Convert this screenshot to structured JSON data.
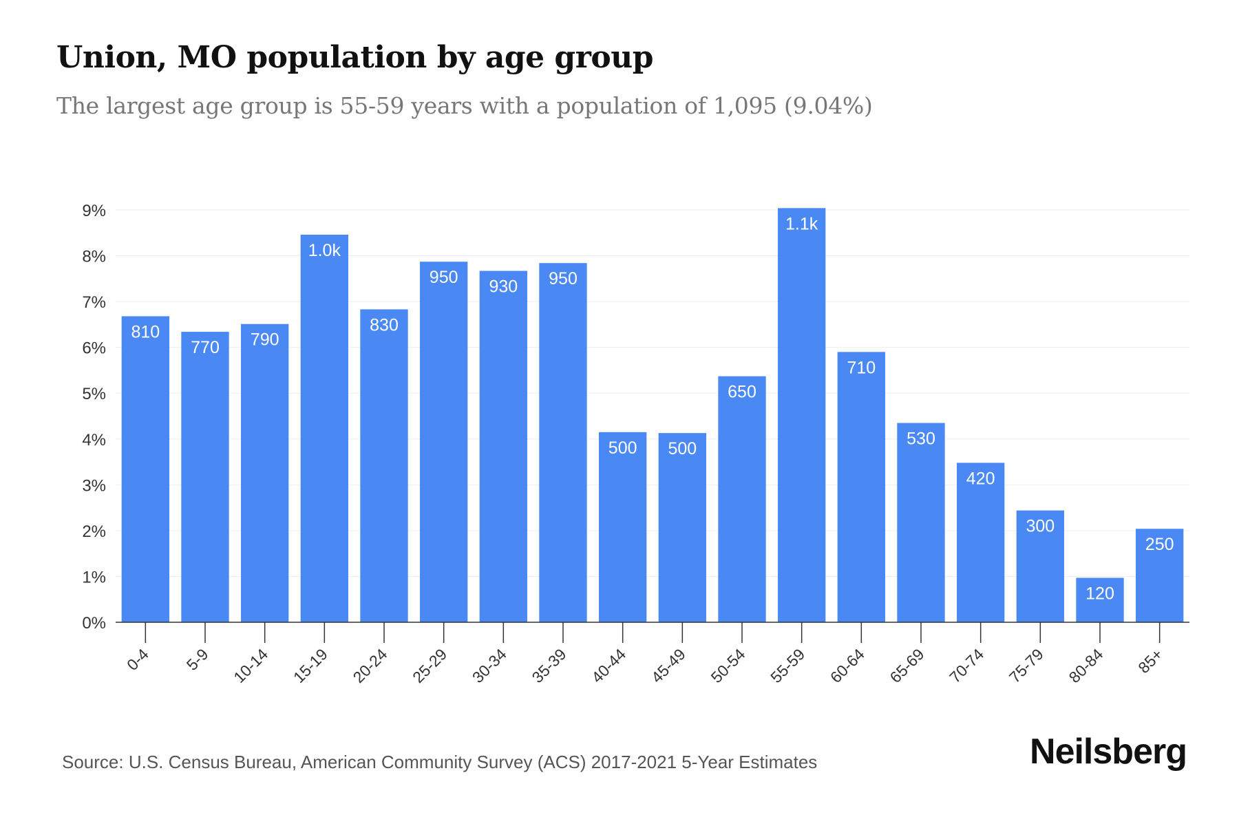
{
  "header": {
    "title": "Union, MO population by age group",
    "subtitle": "The largest age group is 55-59 years with a population of 1,095 (9.04%)"
  },
  "footer": {
    "source": "Source: U.S. Census Bureau, American Community Survey (ACS) 2017-2021 5-Year Estimates",
    "brand": "Neilsberg"
  },
  "colors": {
    "bar": "#4a89f3",
    "bar_label": "#ffffff",
    "grid": "#eeeeee",
    "axis": "#333333",
    "tick_text": "#333333"
  },
  "chart_data": {
    "type": "bar",
    "categories": [
      "0-4",
      "5-9",
      "10-14",
      "15-19",
      "20-24",
      "25-29",
      "30-34",
      "35-39",
      "40-44",
      "45-49",
      "50-54",
      "55-59",
      "60-64",
      "65-69",
      "70-74",
      "75-79",
      "80-84",
      "85+"
    ],
    "values": [
      6.68,
      6.34,
      6.51,
      8.46,
      6.83,
      7.87,
      7.67,
      7.84,
      4.15,
      4.13,
      5.37,
      9.04,
      5.9,
      4.35,
      3.48,
      2.44,
      0.97,
      2.04
    ],
    "data_labels": [
      "810",
      "770",
      "790",
      "1.0k",
      "830",
      "950",
      "930",
      "950",
      "500",
      "500",
      "650",
      "1.1k",
      "710",
      "530",
      "420",
      "300",
      "120",
      "250"
    ],
    "ylim": [
      0,
      9
    ],
    "yticks": [
      "0%",
      "1%",
      "2%",
      "3%",
      "4%",
      "5%",
      "6%",
      "7%",
      "8%",
      "9%"
    ],
    "grid": true,
    "legend": "none"
  }
}
